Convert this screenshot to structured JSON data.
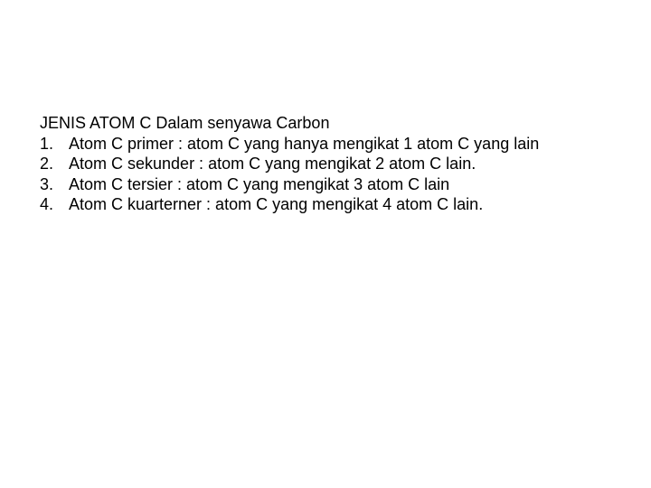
{
  "slide": {
    "background_color": "#ffffff",
    "text_color": "#000000",
    "font_family": "Arial",
    "title_fontsize": 18,
    "body_fontsize": 18,
    "title": "JENIS ATOM C  Dalam senyawa Carbon",
    "items": [
      {
        "num": "1.",
        "text": "Atom C primer : atom C yang hanya mengikat 1 atom C yang lain"
      },
      {
        "num": "2.",
        "text": "Atom C sekunder : atom C yang mengikat 2 atom C lain."
      },
      {
        "num": "3.",
        "text": "Atom C tersier : atom C yang mengikat 3 atom C lain"
      },
      {
        "num": "4.",
        "text": "Atom C kuarterner : atom C yang mengikat 4 atom C lain."
      }
    ]
  }
}
